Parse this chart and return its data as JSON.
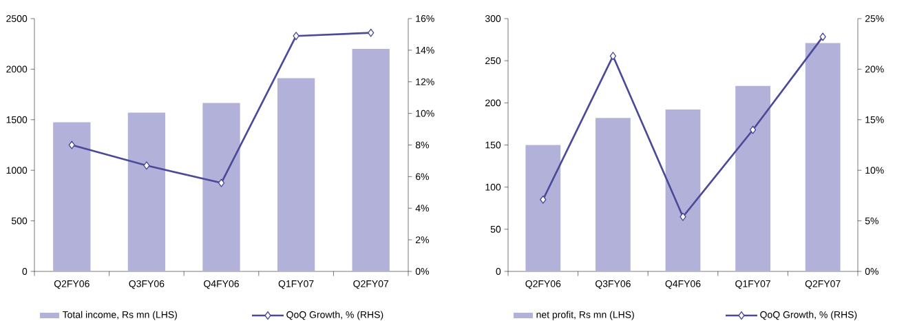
{
  "chart_data": [
    {
      "type": "bar",
      "categories": [
        "Q2FY06",
        "Q3FY06",
        "Q4FY06",
        "Q1FY07",
        "Q2FY07"
      ],
      "series": [
        {
          "name": "Total income, Rs mn (LHS)",
          "color": "#b1b1d9",
          "values": [
            1475,
            1570,
            1665,
            1910,
            2200
          ]
        },
        {
          "name": "QoQ Growth, % (RHS)",
          "type": "line",
          "axis": "y2",
          "color": "#4a4a99",
          "values": [
            8.0,
            6.7,
            5.6,
            14.9,
            15.1
          ]
        }
      ],
      "ylim": [
        0,
        2500
      ],
      "yticks": [
        0,
        500,
        1000,
        1500,
        2000,
        2500
      ],
      "y2lim": [
        0,
        16
      ],
      "y2ticks": [
        {
          "value": 0,
          "label": "0%"
        },
        {
          "value": 2,
          "label": "2%"
        },
        {
          "value": 4,
          "label": "4%"
        },
        {
          "value": 6,
          "label": "6%"
        },
        {
          "value": 8,
          "label": "8%"
        },
        {
          "value": 10,
          "label": "10%"
        },
        {
          "value": 12,
          "label": "12%"
        },
        {
          "value": 14,
          "label": "14%"
        },
        {
          "value": 16,
          "label": "16%"
        }
      ],
      "marker": "diamond",
      "legend": "bottom"
    },
    {
      "type": "bar",
      "categories": [
        "Q2FY06",
        "Q3FY06",
        "Q4FY06",
        "Q1FY07",
        "Q2FY07"
      ],
      "series": [
        {
          "name": "net profit, Rs mn (LHS)",
          "color": "#b1b1d9",
          "values": [
            150,
            182,
            192,
            220,
            271
          ]
        },
        {
          "name": "QoQ Growth, % (RHS)",
          "type": "line",
          "axis": "y2",
          "color": "#4a4a99",
          "values": [
            7.1,
            21.3,
            5.4,
            14.0,
            23.2
          ]
        }
      ],
      "ylim": [
        0,
        300
      ],
      "yticks": [
        0,
        50,
        100,
        150,
        200,
        250,
        300
      ],
      "y2lim": [
        0,
        25
      ],
      "y2ticks": [
        {
          "value": 0,
          "label": "0%"
        },
        {
          "value": 5,
          "label": "5%"
        },
        {
          "value": 10,
          "label": "10%"
        },
        {
          "value": 15,
          "label": "15%"
        },
        {
          "value": 20,
          "label": "20%"
        },
        {
          "value": 25,
          "label": "25%"
        }
      ],
      "marker": "diamond",
      "legend": "bottom"
    }
  ]
}
